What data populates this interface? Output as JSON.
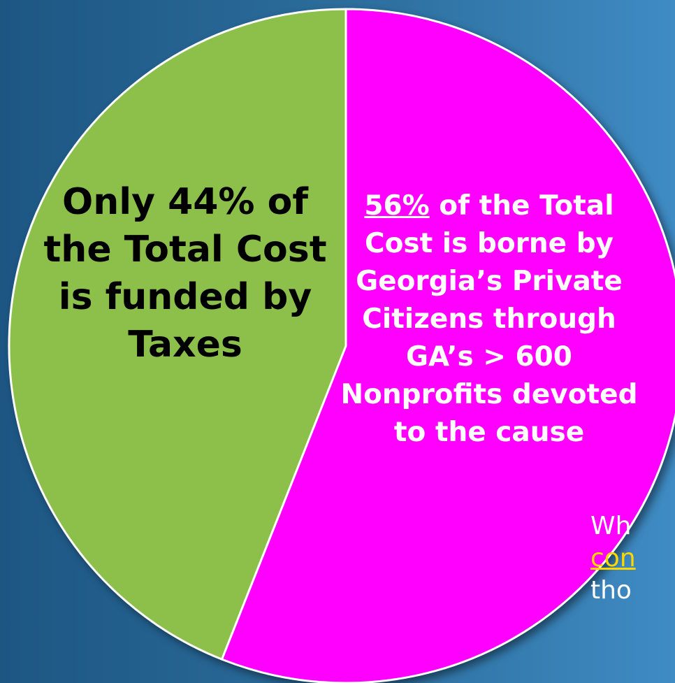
{
  "chart_data": {
    "type": "pie",
    "slices": [
      {
        "label": "Taxes",
        "value": 44,
        "color": "#8dc04a"
      },
      {
        "label": "Georgia's Private Citizens through GA's > 600 Nonprofits",
        "value": 56,
        "color": "#ff00ff"
      }
    ],
    "annotations": {
      "green": {
        "text": "Only 44% of the Total Cost is funded by Taxes",
        "color": "#000000"
      },
      "pink": {
        "percent": "56%",
        "text": " of the Total Cost is borne by Georgia’s Private Citizens through GA’s > 600 Nonprofits devoted to the cause",
        "color": "#ffffff"
      }
    },
    "stroke_color": "#ffffff"
  },
  "side_text": {
    "line1": "Wh",
    "line2": "con",
    "line3": "tho"
  }
}
